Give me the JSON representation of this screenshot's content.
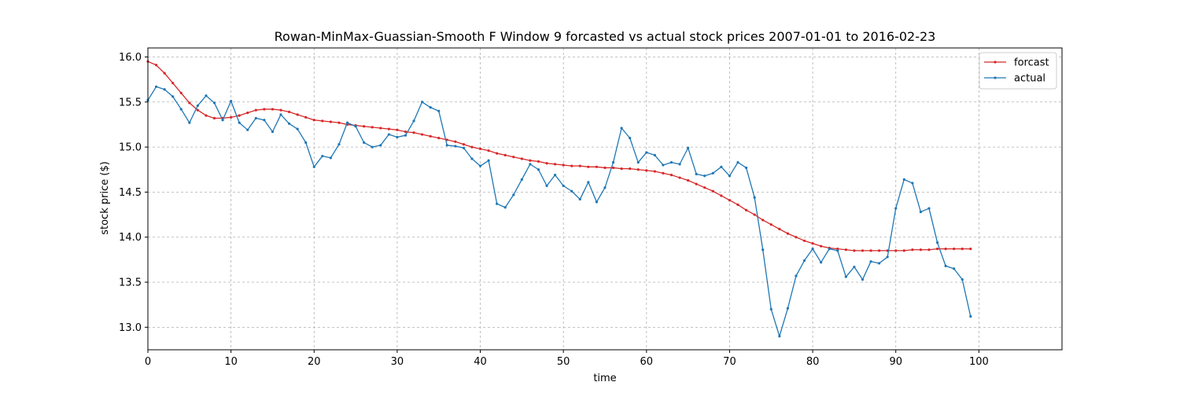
{
  "chart_data": {
    "type": "line",
    "title": "Rowan-MinMax-Guassian-Smooth F Window 9 forcasted vs actual stock prices 2007-01-01 to 2016-02-23",
    "xlabel": "time",
    "ylabel": "stock price ($)",
    "xlim": [
      0,
      110
    ],
    "ylim": [
      12.75,
      16.1
    ],
    "x_ticks": [
      0,
      10,
      20,
      30,
      40,
      50,
      60,
      70,
      80,
      90,
      100
    ],
    "y_ticks": [
      13.0,
      13.5,
      14.0,
      14.5,
      15.0,
      15.5,
      16.0
    ],
    "grid": true,
    "legend_position": "top-right",
    "series": [
      {
        "name": "forcast",
        "color": "#d62728",
        "x": [
          0,
          1,
          2,
          3,
          4,
          5,
          6,
          7,
          8,
          9,
          10,
          11,
          12,
          13,
          14,
          15,
          16,
          17,
          18,
          19,
          20,
          21,
          22,
          23,
          24,
          25,
          26,
          27,
          28,
          29,
          30,
          31,
          32,
          33,
          34,
          35,
          36,
          37,
          38,
          39,
          40,
          41,
          42,
          43,
          44,
          45,
          46,
          47,
          48,
          49,
          50,
          51,
          52,
          53,
          54,
          55,
          56,
          57,
          58,
          59,
          60,
          61,
          62,
          63,
          64,
          65,
          66,
          67,
          68,
          69,
          70,
          71,
          72,
          73,
          74,
          75,
          76,
          77,
          78,
          79,
          80,
          81,
          82,
          83,
          84,
          85,
          86,
          87,
          88,
          89,
          90,
          91,
          92,
          93,
          94,
          95,
          96,
          97,
          98,
          99
        ],
        "values": [
          15.95,
          15.91,
          15.82,
          15.71,
          15.6,
          15.49,
          15.41,
          15.35,
          15.32,
          15.32,
          15.33,
          15.35,
          15.38,
          15.41,
          15.42,
          15.42,
          15.41,
          15.39,
          15.36,
          15.33,
          15.3,
          15.29,
          15.28,
          15.27,
          15.25,
          15.24,
          15.23,
          15.22,
          15.21,
          15.2,
          15.19,
          15.17,
          15.16,
          15.14,
          15.12,
          15.1,
          15.08,
          15.06,
          15.03,
          15.0,
          14.98,
          14.96,
          14.93,
          14.91,
          14.89,
          14.87,
          14.85,
          14.84,
          14.82,
          14.81,
          14.8,
          14.79,
          14.79,
          14.78,
          14.78,
          14.77,
          14.77,
          14.76,
          14.76,
          14.75,
          14.74,
          14.73,
          14.71,
          14.69,
          14.66,
          14.63,
          14.59,
          14.55,
          14.51,
          14.46,
          14.41,
          14.36,
          14.3,
          14.25,
          14.19,
          14.14,
          14.09,
          14.04,
          14.0,
          13.96,
          13.93,
          13.9,
          13.88,
          13.87,
          13.86,
          13.85,
          13.85,
          13.85,
          13.85,
          13.85,
          13.85,
          13.85,
          13.86,
          13.86,
          13.86,
          13.87,
          13.87,
          13.87,
          13.87,
          13.87
        ]
      },
      {
        "name": "actual",
        "color": "#1f77b4",
        "x": [
          0,
          1,
          2,
          3,
          4,
          5,
          6,
          7,
          8,
          9,
          10,
          11,
          12,
          13,
          14,
          15,
          16,
          17,
          18,
          19,
          20,
          21,
          22,
          23,
          24,
          25,
          26,
          27,
          28,
          29,
          30,
          31,
          32,
          33,
          34,
          35,
          36,
          37,
          38,
          39,
          40,
          41,
          42,
          43,
          44,
          45,
          46,
          47,
          48,
          49,
          50,
          51,
          52,
          53,
          54,
          55,
          56,
          57,
          58,
          59,
          60,
          61,
          62,
          63,
          64,
          65,
          66,
          67,
          68,
          69,
          70,
          71,
          72,
          73,
          74,
          75,
          76,
          77,
          78,
          79,
          80,
          81,
          82,
          83,
          84,
          85,
          86,
          87,
          88,
          89,
          90,
          91,
          92,
          93,
          94,
          95,
          96,
          97,
          98,
          99
        ],
        "values": [
          15.52,
          15.67,
          15.64,
          15.56,
          15.42,
          15.27,
          15.46,
          15.57,
          15.49,
          15.3,
          15.51,
          15.27,
          15.19,
          15.32,
          15.3,
          15.17,
          15.36,
          15.26,
          15.2,
          15.05,
          14.78,
          14.9,
          14.88,
          15.03,
          15.27,
          15.23,
          15.05,
          15.0,
          15.02,
          15.14,
          15.11,
          15.13,
          15.29,
          15.5,
          15.44,
          15.4,
          15.02,
          15.01,
          14.99,
          14.87,
          14.79,
          14.85,
          14.37,
          14.33,
          14.47,
          14.64,
          14.81,
          14.75,
          14.57,
          14.69,
          14.57,
          14.51,
          14.42,
          14.61,
          14.39,
          14.55,
          14.83,
          15.21,
          15.1,
          14.83,
          14.94,
          14.91,
          14.8,
          14.83,
          14.81,
          14.99,
          14.7,
          14.68,
          14.71,
          14.78,
          14.68,
          14.83,
          14.77,
          14.44,
          13.86,
          13.2,
          12.9,
          13.21,
          13.57,
          13.74,
          13.87,
          13.72,
          13.87,
          13.85,
          13.56,
          13.67,
          13.53,
          13.73,
          13.71,
          13.78,
          14.32,
          14.64,
          14.6,
          14.28,
          14.32,
          13.94,
          13.68,
          13.65,
          13.53,
          13.12
        ]
      }
    ]
  }
}
